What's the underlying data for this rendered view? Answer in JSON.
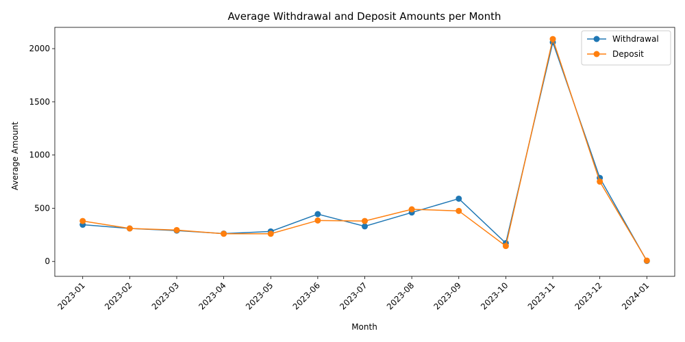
{
  "chart_data": {
    "type": "line",
    "title": "Average Withdrawal and Deposit Amounts per Month",
    "xlabel": "Month",
    "ylabel": "Average Amount",
    "categories": [
      "2023-01",
      "2023-02",
      "2023-03",
      "2023-04",
      "2023-05",
      "2023-06",
      "2023-07",
      "2023-08",
      "2023-09",
      "2023-10",
      "2023-11",
      "2023-12",
      "2024-01"
    ],
    "ylim": [
      -140,
      2200
    ],
    "yticks": [
      0,
      500,
      1000,
      1500,
      2000
    ],
    "grid": false,
    "legend_position": "top-right",
    "series": [
      {
        "name": "Withdrawal",
        "color": "#1f77b4",
        "marker": "circle",
        "values": [
          345,
          310,
          290,
          262,
          282,
          445,
          330,
          460,
          590,
          172,
          2060,
          785,
          5
        ]
      },
      {
        "name": "Deposit",
        "color": "#ff7f0e",
        "marker": "circle",
        "values": [
          380,
          310,
          295,
          260,
          260,
          385,
          380,
          490,
          475,
          145,
          2090,
          750,
          8
        ]
      }
    ]
  }
}
